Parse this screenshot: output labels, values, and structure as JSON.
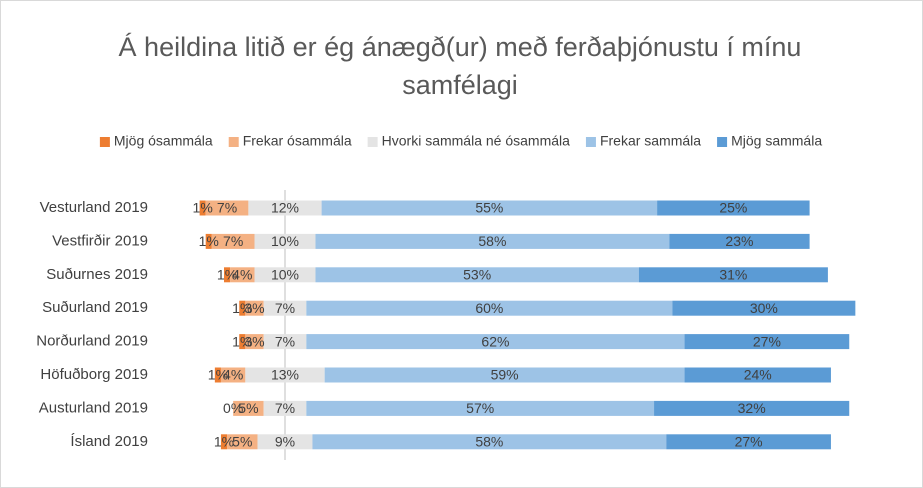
{
  "chart_data": {
    "type": "bar",
    "title": "Á heildina litið er ég ánægð(ur) með ferðaþjónustu í mínu samfélagi",
    "categories": [
      "Vesturland 2019",
      "Vestfirðir 2019",
      "Suðurnes 2019",
      "Suðurland 2019",
      "Norðurland 2019",
      "Höfuðborg 2019",
      "Austurland 2019",
      "Ísland 2019"
    ],
    "series": [
      {
        "name": "Mjög ósammála",
        "color": "#ed7d31",
        "values": [
          1,
          1,
          1,
          1,
          1,
          1,
          0,
          1
        ],
        "value_labels": [
          "1%",
          "1%",
          "1%",
          "1%",
          "1%",
          "1%",
          "0%",
          "1%"
        ]
      },
      {
        "name": "Frekar ósammála",
        "color": "#f4b183",
        "values": [
          7,
          7,
          4,
          3,
          3,
          4,
          5,
          5
        ],
        "value_labels": [
          "7%",
          "7%",
          "4%",
          "3%",
          "3%",
          "4%",
          "5%",
          "5%"
        ]
      },
      {
        "name": "Hvorki sammála né ósammála",
        "color": "#e4e4e4",
        "values": [
          12,
          10,
          10,
          7,
          7,
          13,
          7,
          9
        ],
        "value_labels": [
          "12%",
          "10%",
          "10%",
          "7%",
          "7%",
          "13%",
          "7%",
          "9%"
        ]
      },
      {
        "name": "Frekar sammála",
        "color": "#9dc3e6",
        "values": [
          55,
          58,
          53,
          60,
          62,
          59,
          57,
          58
        ],
        "value_labels": [
          "55%",
          "58%",
          "53%",
          "60%",
          "62%",
          "59%",
          "57%",
          "58%"
        ]
      },
      {
        "name": "Mjög sammála",
        "color": "#5b9bd5",
        "values": [
          25,
          23,
          31,
          30,
          27,
          24,
          32,
          27
        ],
        "value_labels": [
          "25%",
          "23%",
          "31%",
          "30%",
          "27%",
          "24%",
          "32%",
          "27%"
        ]
      }
    ]
  }
}
